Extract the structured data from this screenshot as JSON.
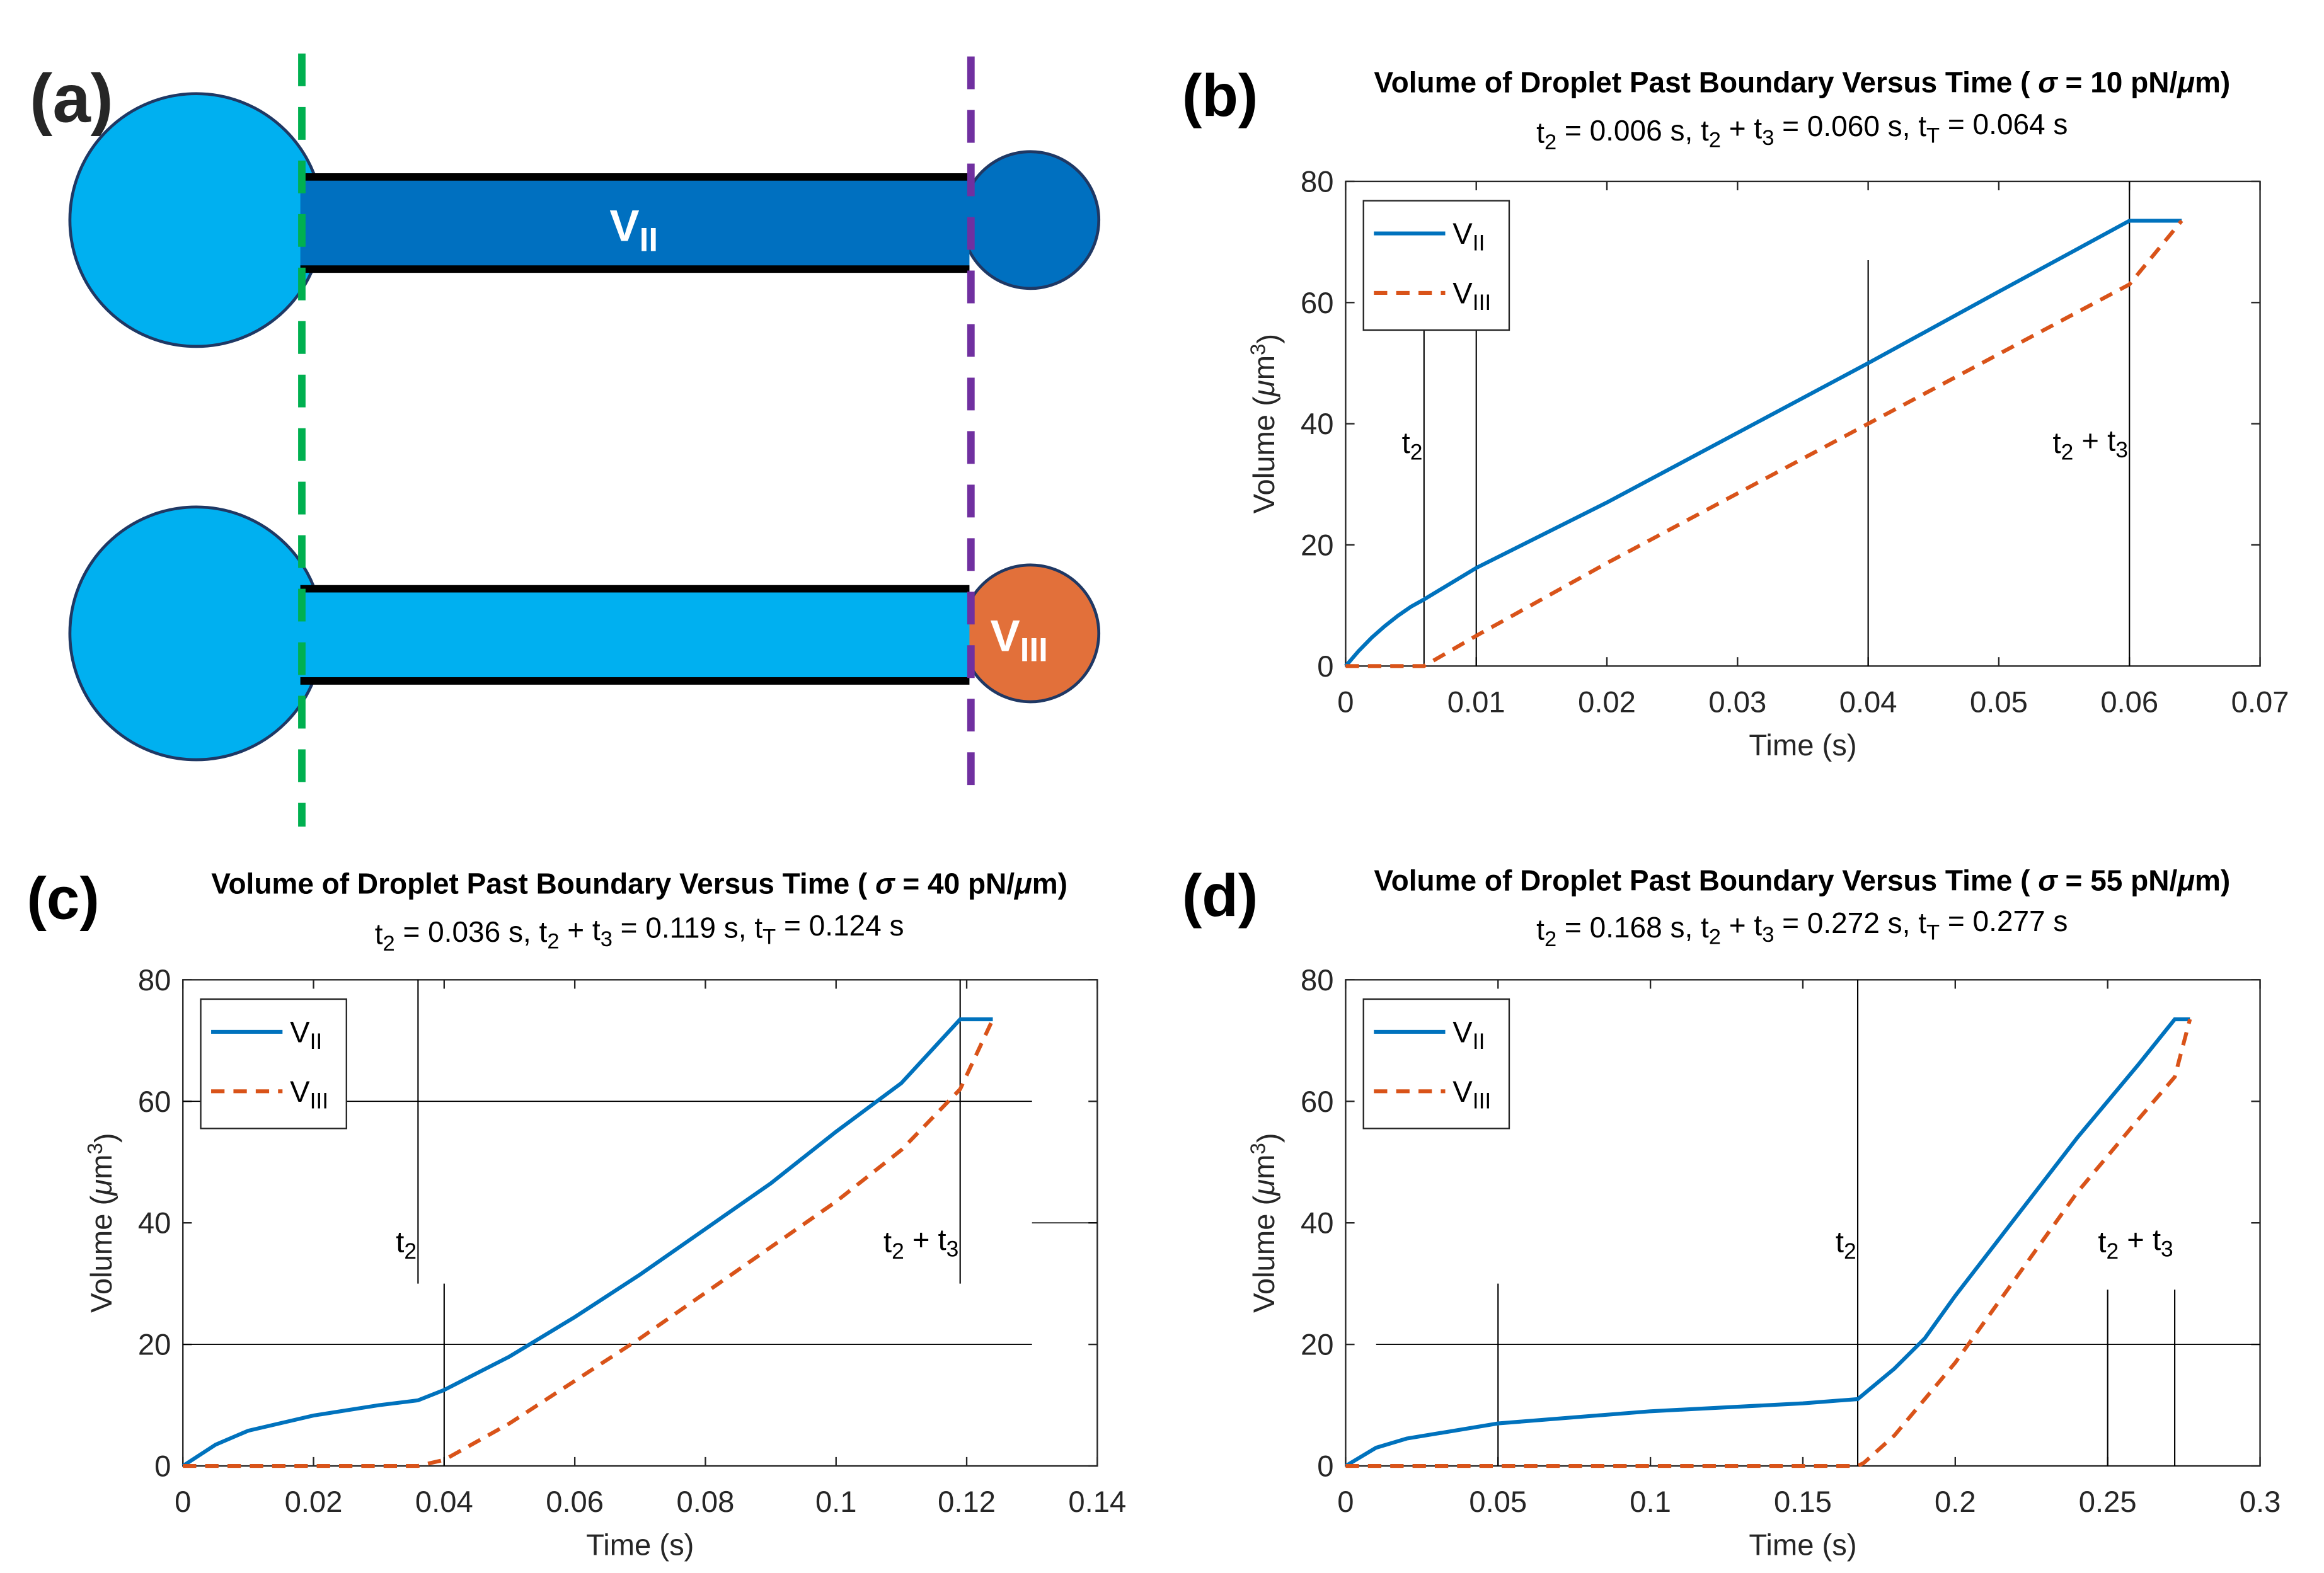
{
  "diagram": {
    "panel_label": "(a)",
    "labels": [
      [
        {
          "text": "V"
        },
        {
          "text": "II",
          "style": "sub"
        }
      ],
      [
        {
          "text": "V"
        },
        {
          "text": "III",
          "style": "sub"
        }
      ]
    ]
  },
  "chart_data": [
    {
      "type": "line",
      "panel_label": "(b)",
      "title": [
        {
          "text": "Volume of Droplet Past Boundary Versus Time ( "
        },
        {
          "text": "σ",
          "style": "italic"
        },
        {
          "text": " = 10 pN/"
        },
        {
          "text": "μ",
          "style": "italic"
        },
        {
          "text": "m)"
        }
      ],
      "subtitle": [
        {
          "text": "t"
        },
        {
          "text": "2",
          "style": "sub"
        },
        {
          "text": " = 0.006 s, t"
        },
        {
          "text": "2",
          "style": "sub"
        },
        {
          "text": " + t"
        },
        {
          "text": "3",
          "style": "sub"
        },
        {
          "text": " = 0.060 s, t"
        },
        {
          "text": "T",
          "style": "sub"
        },
        {
          "text": " = 0.064 s"
        }
      ],
      "xlabel": [
        {
          "text": "Time (s)"
        }
      ],
      "ylabel": [
        {
          "text": "Volume ("
        },
        {
          "text": "μ",
          "style": "italic"
        },
        {
          "text": "m"
        },
        {
          "text": "3",
          "style": "sup"
        },
        {
          "text": ")"
        }
      ],
      "xlim": [
        0,
        0.07
      ],
      "xticks": [
        0,
        0.01,
        0.02,
        0.03,
        0.04,
        0.05,
        0.06,
        0.07
      ],
      "ylim": [
        0,
        80
      ],
      "yticks": [
        0,
        20,
        40,
        60,
        80
      ],
      "legend": "upper left",
      "series": [
        {
          "name": [
            {
              "text": "V"
            },
            {
              "text": "II",
              "style": "sub"
            }
          ],
          "color": "#0072bd",
          "dash": false,
          "x": [
            0,
            0.001,
            0.002,
            0.003,
            0.004,
            0.005,
            0.006,
            0.01,
            0.02,
            0.03,
            0.04,
            0.05,
            0.06,
            0.064
          ],
          "values": [
            0,
            2.5,
            4.7,
            6.6,
            8.3,
            9.8,
            11,
            16.2,
            27,
            38.5,
            50,
            61.8,
            73.5,
            73.5
          ]
        },
        {
          "name": [
            {
              "text": "V"
            },
            {
              "text": "III",
              "style": "sub"
            }
          ],
          "color": "#d95319",
          "dash": true,
          "x": [
            0,
            0.006,
            0.01,
            0.02,
            0.03,
            0.04,
            0.05,
            0.06,
            0.064
          ],
          "values": [
            0,
            0,
            5,
            17,
            28.5,
            40,
            51.5,
            63,
            73.5
          ]
        }
      ],
      "ref_lines": [
        {
          "x": 0.006,
          "y": [
            0,
            56
          ]
        },
        {
          "x": 0.01,
          "y": [
            0,
            56
          ]
        },
        {
          "x": 0.04,
          "y": [
            0,
            67
          ]
        },
        {
          "x": 0.06,
          "y": [
            0,
            80
          ]
        }
      ],
      "annotations": [
        {
          "text": [
            {
              "text": "t"
            },
            {
              "text": "2",
              "style": "sub"
            }
          ],
          "x": 0.006
        },
        {
          "text": [
            {
              "text": "t"
            },
            {
              "text": "2",
              "style": "sub"
            },
            {
              "text": " + t"
            },
            {
              "text": "3",
              "style": "sub"
            }
          ],
          "x": 0.06
        }
      ]
    },
    {
      "type": "line",
      "panel_label": "(c)",
      "title": [
        {
          "text": "Volume of Droplet Past Boundary Versus Time ( "
        },
        {
          "text": "σ",
          "style": "italic"
        },
        {
          "text": " = 40 pN/"
        },
        {
          "text": "μ",
          "style": "italic"
        },
        {
          "text": "m)"
        }
      ],
      "subtitle": [
        {
          "text": "t"
        },
        {
          "text": "2",
          "style": "sub"
        },
        {
          "text": " = 0.036 s, t"
        },
        {
          "text": "2",
          "style": "sub"
        },
        {
          "text": " + t"
        },
        {
          "text": "3",
          "style": "sub"
        },
        {
          "text": " = 0.119 s, t"
        },
        {
          "text": "T",
          "style": "sub"
        },
        {
          "text": " = 0.124 s"
        }
      ],
      "xlabel": [
        {
          "text": "Time (s)"
        }
      ],
      "ylabel": [
        {
          "text": "Volume ("
        },
        {
          "text": "μ",
          "style": "italic"
        },
        {
          "text": "m"
        },
        {
          "text": "3",
          "style": "sup"
        },
        {
          "text": ")"
        }
      ],
      "xlim": [
        0,
        0.14
      ],
      "xticks": [
        0,
        0.02,
        0.04,
        0.06,
        0.08,
        0.1,
        0.12,
        0.14
      ],
      "ylim": [
        0,
        80
      ],
      "yticks": [
        0,
        20,
        40,
        60,
        80
      ],
      "legend": "upper left",
      "series": [
        {
          "name": [
            {
              "text": "V"
            },
            {
              "text": "II",
              "style": "sub"
            }
          ],
          "color": "#0072bd",
          "dash": false,
          "x": [
            0,
            0.005,
            0.01,
            0.02,
            0.03,
            0.036,
            0.04,
            0.05,
            0.06,
            0.07,
            0.08,
            0.09,
            0.1,
            0.11,
            0.119,
            0.124
          ],
          "values": [
            0,
            3.5,
            5.8,
            8.3,
            10,
            10.8,
            12.5,
            18,
            24.5,
            31.5,
            39,
            46.5,
            55,
            63,
            73.5,
            73.5
          ]
        },
        {
          "name": [
            {
              "text": "V"
            },
            {
              "text": "III",
              "style": "sub"
            }
          ],
          "color": "#d95319",
          "dash": true,
          "x": [
            0,
            0.036,
            0.04,
            0.05,
            0.06,
            0.07,
            0.08,
            0.09,
            0.1,
            0.11,
            0.119,
            0.124
          ],
          "values": [
            0,
            0,
            1,
            7,
            14,
            21,
            28.5,
            36,
            43.5,
            52,
            62,
            73.5
          ]
        }
      ],
      "ref_lines": [
        {
          "x": 0.036,
          "y": [
            30,
            80
          ]
        },
        {
          "x": 0.04,
          "y": [
            0,
            30
          ]
        },
        {
          "x": 0.119,
          "y": [
            30,
            80
          ]
        },
        {
          "y": 60,
          "x": [
            0,
            0.13
          ]
        },
        {
          "y": 20,
          "x": [
            0,
            0.13
          ]
        },
        {
          "y": 40,
          "x": [
            0.13,
            0.14
          ]
        }
      ],
      "annotations": [
        {
          "text": [
            {
              "text": "t"
            },
            {
              "text": "2",
              "style": "sub"
            }
          ],
          "x": 0.036
        },
        {
          "text": [
            {
              "text": "t"
            },
            {
              "text": "2",
              "style": "sub"
            },
            {
              "text": " + t"
            },
            {
              "text": "3",
              "style": "sub"
            }
          ],
          "x": 0.119
        }
      ]
    },
    {
      "type": "line",
      "panel_label": "(d)",
      "title": [
        {
          "text": "Volume of Droplet Past Boundary Versus Time ( "
        },
        {
          "text": "σ",
          "style": "italic"
        },
        {
          "text": " = 55 pN/"
        },
        {
          "text": "μ",
          "style": "italic"
        },
        {
          "text": "m)"
        }
      ],
      "subtitle": [
        {
          "text": "t"
        },
        {
          "text": "2",
          "style": "sub"
        },
        {
          "text": " = 0.168 s, t"
        },
        {
          "text": "2",
          "style": "sub"
        },
        {
          "text": " + t"
        },
        {
          "text": "3",
          "style": "sub"
        },
        {
          "text": " = 0.272 s, t"
        },
        {
          "text": "T",
          "style": "sub"
        },
        {
          "text": " = 0.277 s"
        }
      ],
      "xlabel": [
        {
          "text": "Time (s)"
        }
      ],
      "ylabel": [
        {
          "text": "Volume ("
        },
        {
          "text": "μ",
          "style": "italic"
        },
        {
          "text": "m"
        },
        {
          "text": "3",
          "style": "sup"
        },
        {
          "text": ")"
        }
      ],
      "xlim": [
        0,
        0.3
      ],
      "xticks": [
        0,
        0.05,
        0.1,
        0.15,
        0.2,
        0.25,
        0.3
      ],
      "ylim": [
        0,
        80
      ],
      "yticks": [
        0,
        20,
        40,
        60,
        80
      ],
      "legend": "upper left",
      "series": [
        {
          "name": [
            {
              "text": "V"
            },
            {
              "text": "II",
              "style": "sub"
            }
          ],
          "color": "#0072bd",
          "dash": false,
          "x": [
            0,
            0.01,
            0.02,
            0.05,
            0.1,
            0.15,
            0.168,
            0.18,
            0.19,
            0.2,
            0.22,
            0.24,
            0.26,
            0.272,
            0.277
          ],
          "values": [
            0,
            3,
            4.5,
            7,
            9,
            10.3,
            11,
            16,
            21,
            28,
            41,
            54,
            66,
            73.5,
            73.5
          ]
        },
        {
          "name": [
            {
              "text": "V"
            },
            {
              "text": "III",
              "style": "sub"
            }
          ],
          "color": "#d95319",
          "dash": true,
          "x": [
            0,
            0.168,
            0.17,
            0.18,
            0.2,
            0.22,
            0.24,
            0.26,
            0.272,
            0.277
          ],
          "values": [
            0,
            0,
            0.5,
            5,
            17,
            31,
            45,
            57,
            64,
            73.5
          ]
        }
      ],
      "ref_lines": [
        {
          "x": 0.05,
          "y": [
            0,
            30
          ]
        },
        {
          "x": 0.168,
          "y": [
            0,
            80
          ]
        },
        {
          "x": 0.25,
          "y": [
            0,
            29
          ]
        },
        {
          "x": 0.272,
          "y": [
            0,
            29
          ]
        },
        {
          "y": 20,
          "x": [
            0.01,
            0.3
          ]
        }
      ],
      "annotations": [
        {
          "text": [
            {
              "text": "t"
            },
            {
              "text": "2",
              "style": "sub"
            }
          ],
          "x": 0.168
        },
        {
          "text": [
            {
              "text": "t"
            },
            {
              "text": "2",
              "style": "sub"
            },
            {
              "text": " + t"
            },
            {
              "text": "3",
              "style": "sub"
            }
          ],
          "x": 0.272
        }
      ]
    }
  ]
}
